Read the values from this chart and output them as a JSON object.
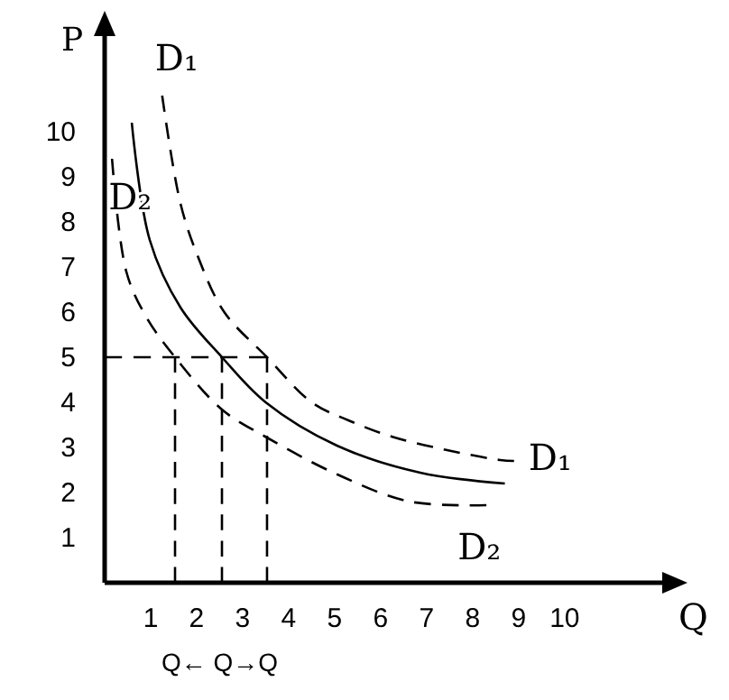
{
  "chart_data": {
    "type": "line",
    "xlabel": "Q",
    "ylabel": "P",
    "xlim": [
      0,
      12.2
    ],
    "ylim": [
      0,
      12.2
    ],
    "xticks": [
      1,
      2,
      3,
      4,
      5,
      6,
      7,
      8,
      9,
      10
    ],
    "yticks": [
      1,
      2,
      3,
      4,
      5,
      6,
      7,
      8,
      9,
      10
    ],
    "grid": false,
    "legend": false,
    "marker": "none",
    "series": [
      {
        "name": "D₁",
        "color": "#000000",
        "line_style": "dashed",
        "x": [
          1.25,
          1.65,
          2.04,
          2.6,
          3.53,
          4.5,
          5.3,
          6.24,
          7.4,
          8.6,
          8.9
        ],
        "values": [
          10.8,
          8.4,
          7.2,
          6.0,
          5,
          4,
          3.6,
          3.24,
          2.95,
          2.72,
          2.7
        ]
      },
      {
        "color": "#000000",
        "line_style": "solid",
        "x": [
          0.59,
          0.98,
          1.65,
          2.55,
          3.5,
          5.05,
          6.86,
          8.7
        ],
        "values": [
          10.2,
          7.6,
          6.1,
          5,
          4,
          3.04,
          2.44,
          2.2
        ]
      },
      {
        "name": "D₂",
        "color": "#000000",
        "line_style": "dashed",
        "x": [
          0.16,
          0.47,
          0.9,
          1.53,
          2.55,
          3.49,
          5.06,
          6.63,
          8.3
        ],
        "values": [
          9.4,
          6.9,
          5.9,
          5,
          3.84,
          3.24,
          2.4,
          1.8,
          1.72
        ]
      },
      {
        "color": "#000000",
        "line_style": "dashed",
        "x": [
          0,
          3.53
        ],
        "values": [
          5,
          5
        ]
      },
      {
        "color": "#000000",
        "line_style": "dashed",
        "x": [
          1.53,
          1.53
        ],
        "values": [
          0,
          5
        ]
      },
      {
        "color": "#000000",
        "line_style": "dashed",
        "x": [
          2.55,
          2.55
        ],
        "values": [
          0,
          5
        ]
      },
      {
        "color": "#000000",
        "line_style": "dashed",
        "x": [
          3.53,
          3.53
        ],
        "values": [
          0,
          5
        ]
      }
    ],
    "annotations": [
      "Q← Q→Q"
    ]
  }
}
